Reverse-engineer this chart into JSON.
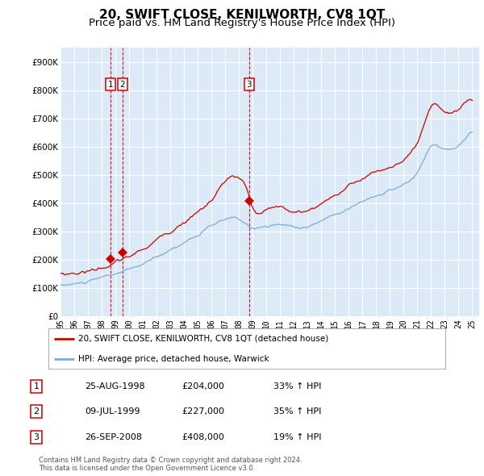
{
  "title": "20, SWIFT CLOSE, KENILWORTH, CV8 1QT",
  "subtitle": "Price paid vs. HM Land Registry's House Price Index (HPI)",
  "title_fontsize": 11,
  "subtitle_fontsize": 9.5,
  "background_color": "#ffffff",
  "plot_bg_color": "#dce9f7",
  "grid_color": "#ffffff",
  "ylim": [
    0,
    950000
  ],
  "yticks": [
    0,
    100000,
    200000,
    300000,
    400000,
    500000,
    600000,
    700000,
    800000,
    900000
  ],
  "xlim_start": 1995.0,
  "xlim_end": 2025.5,
  "sale_dates": [
    1998.646,
    1999.521,
    2008.74
  ],
  "sale_prices": [
    204000,
    227000,
    408000
  ],
  "sale_labels": [
    "1",
    "2",
    "3"
  ],
  "line_color_red": "#cc0000",
  "line_color_blue": "#7aaed4",
  "vline_color": "#cc0000",
  "legend_label_red": "20, SWIFT CLOSE, KENILWORTH, CV8 1QT (detached house)",
  "legend_label_blue": "HPI: Average price, detached house, Warwick",
  "table_data": [
    [
      "1",
      "25-AUG-1998",
      "£204,000",
      "33% ↑ HPI"
    ],
    [
      "2",
      "09-JUL-1999",
      "£227,000",
      "35% ↑ HPI"
    ],
    [
      "3",
      "26-SEP-2008",
      "£408,000",
      "19% ↑ HPI"
    ]
  ],
  "footnote": "Contains HM Land Registry data © Crown copyright and database right 2024.\nThis data is licensed under the Open Government Licence v3.0."
}
